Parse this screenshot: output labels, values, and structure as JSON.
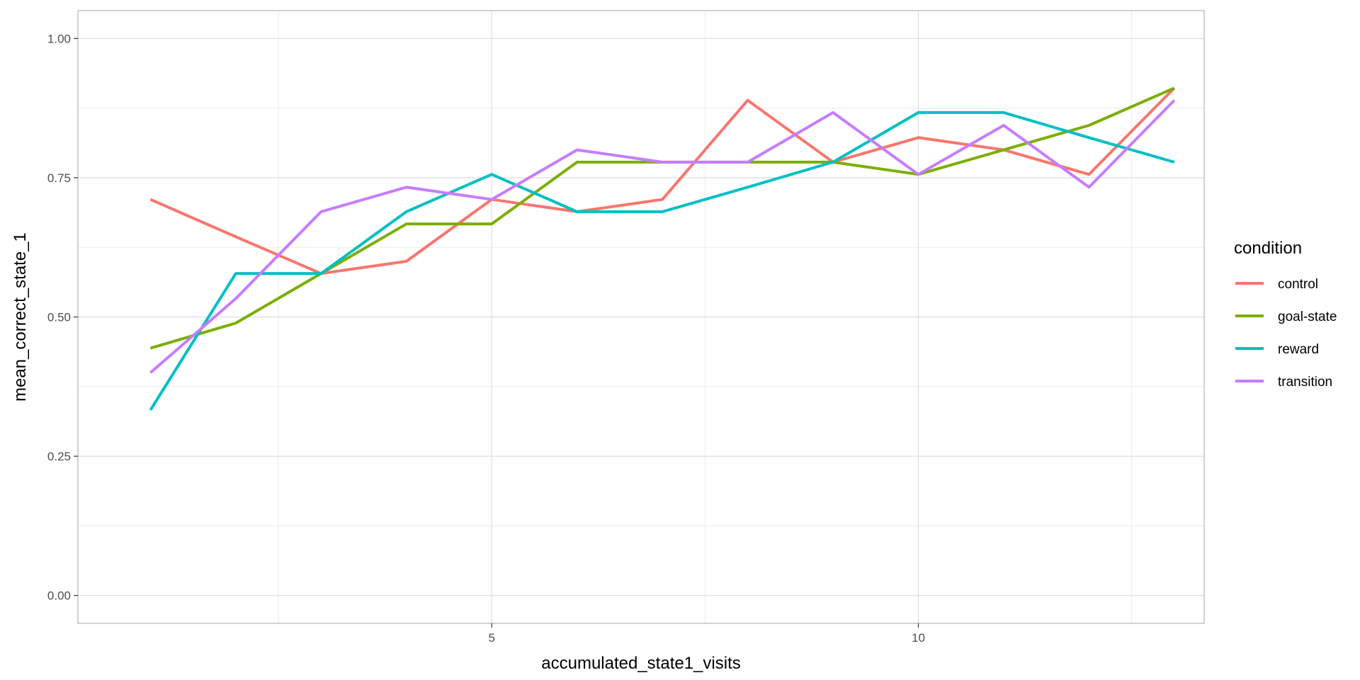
{
  "chart_data": {
    "type": "line",
    "title": "",
    "xlabel": "accumulated_state1_visits",
    "ylabel": "mean_correct_state_1",
    "xlim": [
      0.15,
      13.35
    ],
    "ylim": [
      -0.05,
      1.05
    ],
    "x_ticks": [
      5,
      10
    ],
    "x_tick_labels": [
      "5",
      "10"
    ],
    "x_minor_ticks": [
      2.5,
      7.5,
      12.5
    ],
    "y_ticks": [
      0,
      0.25,
      0.5,
      0.75,
      1.0
    ],
    "y_tick_labels": [
      "0.00",
      "0.25",
      "0.50",
      "0.75",
      "1.00"
    ],
    "y_minor_ticks": [
      0.125,
      0.375,
      0.625,
      0.875
    ],
    "grid": true,
    "legend": {
      "title": "condition",
      "position": "right"
    },
    "x": [
      1,
      2,
      3,
      4,
      5,
      6,
      7,
      8,
      9,
      10,
      11,
      12,
      13
    ],
    "series": [
      {
        "name": "control",
        "color": "#F8766D",
        "values": [
          0.711,
          0.644,
          0.578,
          0.6,
          0.711,
          0.689,
          0.711,
          0.889,
          0.778,
          0.822,
          0.8,
          0.756,
          0.911
        ]
      },
      {
        "name": "goal-state",
        "color": "#7CAE00",
        "values": [
          0.444,
          0.489,
          0.578,
          0.667,
          0.667,
          0.778,
          0.778,
          0.778,
          0.778,
          0.756,
          0.8,
          0.844,
          0.911
        ]
      },
      {
        "name": "reward",
        "color": "#00BFC4",
        "values": [
          0.333,
          0.578,
          0.578,
          0.689,
          0.756,
          0.689,
          0.689,
          0.733,
          0.778,
          0.867,
          0.867,
          0.822,
          0.778
        ]
      },
      {
        "name": "transition",
        "color": "#C77CFF",
        "values": [
          0.4,
          0.533,
          0.689,
          0.733,
          0.711,
          0.8,
          0.778,
          0.778,
          0.867,
          0.756,
          0.844,
          0.733,
          0.889
        ]
      }
    ]
  }
}
